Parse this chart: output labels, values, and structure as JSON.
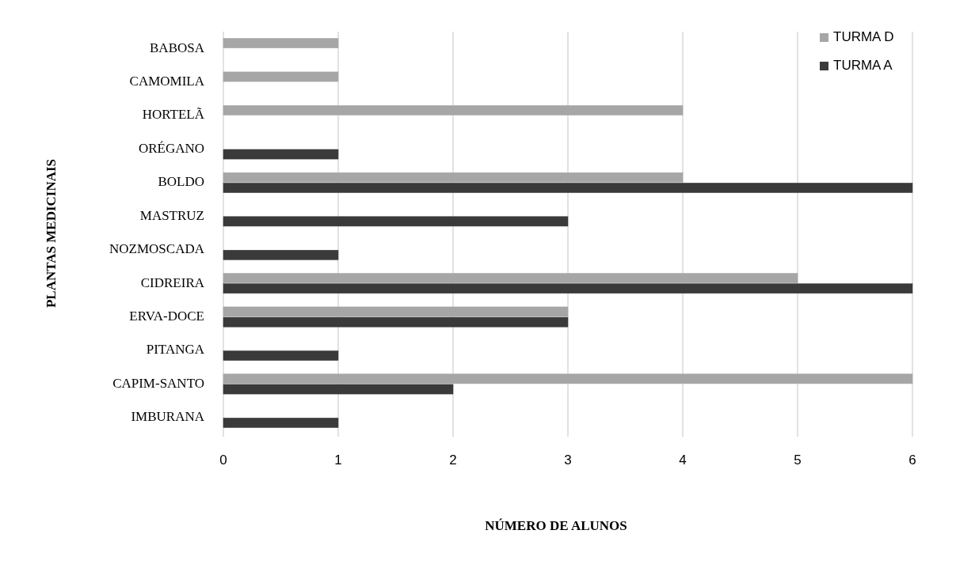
{
  "chart_data": {
    "type": "bar",
    "orientation": "horizontal",
    "xlabel": "NÚMERO DE ALUNOS",
    "ylabel": "PLANTAS MEDICINAIS",
    "categories": [
      "BABOSA",
      "CAMOMILA",
      "HORTELÃ",
      "ORÉGANO",
      "BOLDO",
      "MASTRUZ",
      "NOZMOSCADA",
      "CIDREIRA",
      "ERVA-DOCE",
      "PITANGA",
      "CAPIM-SANTO",
      "IMBURANA"
    ],
    "series": [
      {
        "name": "TURMA D",
        "color": "#a6a6a6",
        "values": [
          1,
          1,
          4,
          0,
          4,
          0,
          0,
          5,
          3,
          0,
          6,
          0
        ]
      },
      {
        "name": "TURMA A",
        "color": "#3a3a3a",
        "values": [
          0,
          0,
          0,
          1,
          6,
          3,
          1,
          6,
          3,
          1,
          2,
          1
        ]
      }
    ],
    "xlim": [
      0,
      6
    ],
    "xticks": [
      0,
      1,
      2,
      3,
      4,
      5,
      6
    ],
    "grid": "x",
    "legend": "top right"
  }
}
